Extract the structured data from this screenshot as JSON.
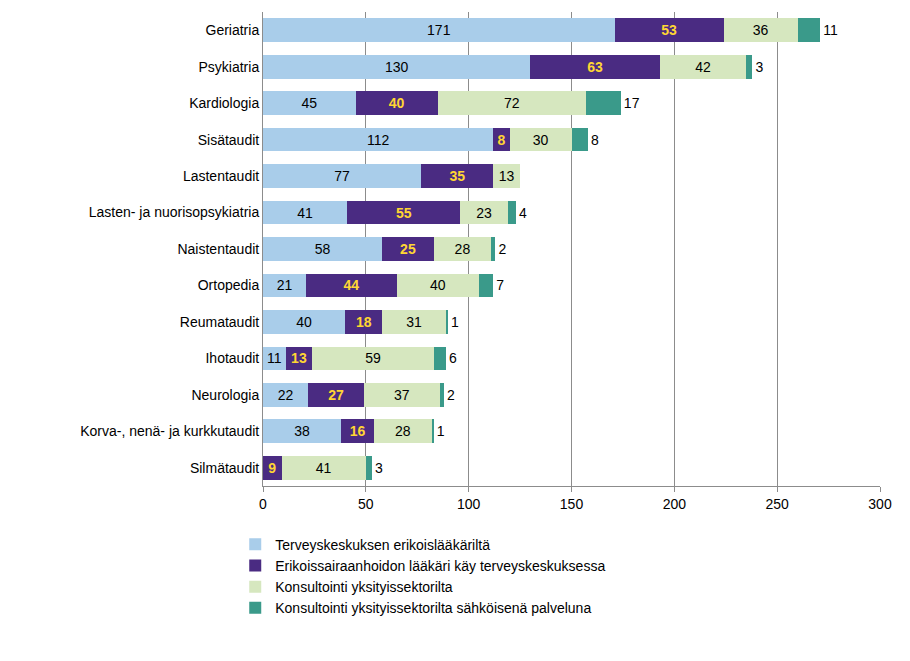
{
  "chart_data": {
    "type": "bar",
    "orientation": "horizontal",
    "stacked": true,
    "data_labels": true,
    "grid": true,
    "legend": "bottom",
    "categories": [
      "Geriatria",
      "Psykiatria",
      "Kardiologia",
      "Sisätaudit",
      "Lastentaudit",
      "Lasten- ja nuorisopsykiatria",
      "Naistentaudit",
      "Ortopedia",
      "Reumataudit",
      "Ihotaudit",
      "Neurologia",
      "Korva-, nenä- ja kurkkutaudit",
      "Silmätaudit"
    ],
    "series": [
      {
        "name": "Terveyskeskuksen erikoislääkäriltä",
        "color": "#a9cdea",
        "values": [
          171,
          130,
          45,
          112,
          77,
          41,
          58,
          21,
          40,
          11,
          22,
          38,
          null
        ]
      },
      {
        "name": "Erikoissairaanhoidon lääkäri käy terveyskeskuksessa",
        "color": "#4a2b82",
        "values": [
          53,
          63,
          40,
          8,
          35,
          55,
          25,
          44,
          18,
          13,
          27,
          16,
          9
        ]
      },
      {
        "name": "Konsultointi yksityissektorilta",
        "color": "#d6e7bf",
        "values": [
          36,
          42,
          72,
          30,
          13,
          23,
          28,
          40,
          31,
          59,
          37,
          28,
          41
        ]
      },
      {
        "name": "Konsultointi yksityissektorilta sähköisenä palveluna",
        "color": "#3a9a8a",
        "values": [
          11,
          3,
          17,
          8,
          null,
          4,
          2,
          7,
          1,
          6,
          2,
          1,
          3
        ]
      }
    ],
    "xlim": [
      0,
      300
    ],
    "xticks": [
      0,
      50,
      100,
      150,
      200,
      250,
      300
    ]
  }
}
